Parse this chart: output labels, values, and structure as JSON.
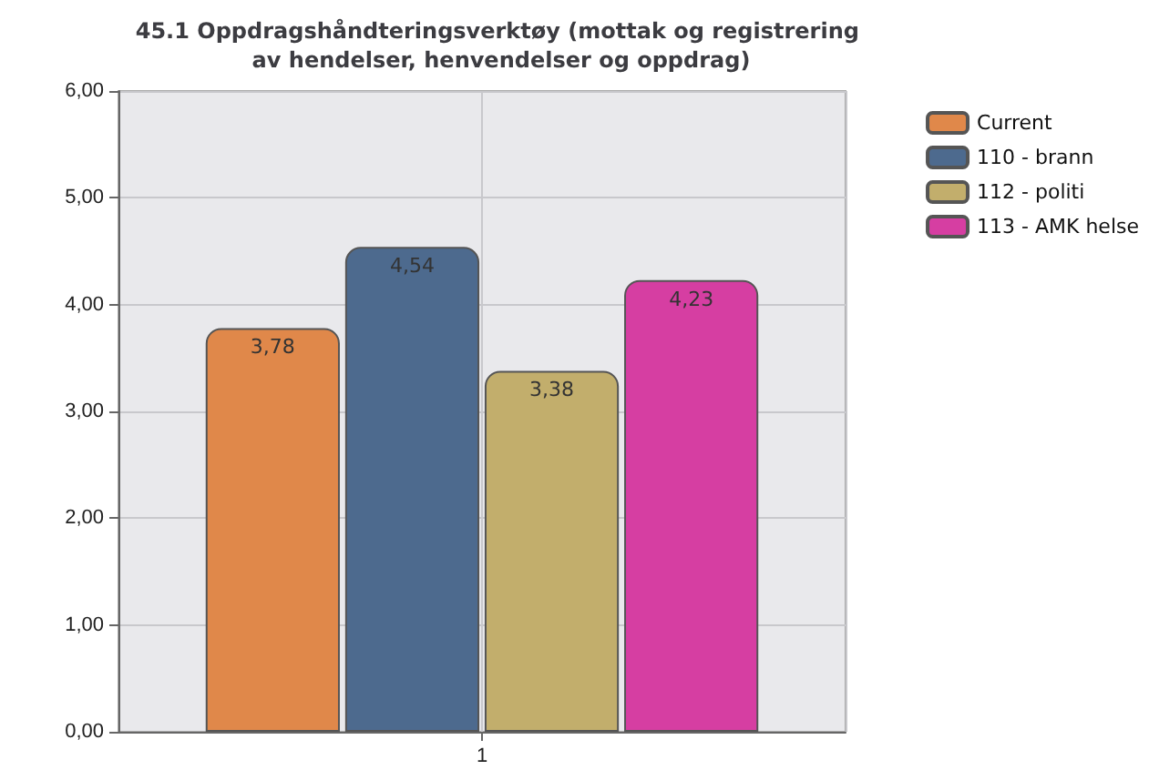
{
  "chart_data": {
    "type": "bar",
    "title": "45.1 Oppdragshåndteringsverktøy (mottak og registrering av hendelser, henvendelser og oppdrag)",
    "categories": [
      "1"
    ],
    "series": [
      {
        "name": "Current",
        "color": "#e0884a",
        "values": [
          3.78
        ],
        "value_labels": [
          "3,78"
        ]
      },
      {
        "name": "110 - brann",
        "color": "#4d6a8e",
        "values": [
          4.54
        ],
        "value_labels": [
          "4,54"
        ]
      },
      {
        "name": "112 - politi",
        "color": "#c2ae6c",
        "values": [
          3.38
        ],
        "value_labels": [
          "3,38"
        ]
      },
      {
        "name": "113 - AMK helse",
        "color": "#d63ea2",
        "values": [
          4.23
        ],
        "value_labels": [
          "4,23"
        ]
      }
    ],
    "ylim": [
      0,
      6
    ],
    "yticks": [
      {
        "value": 0,
        "label": "0,00"
      },
      {
        "value": 1,
        "label": "1,00"
      },
      {
        "value": 2,
        "label": "2,00"
      },
      {
        "value": 3,
        "label": "3,00"
      },
      {
        "value": 4,
        "label": "4,00"
      },
      {
        "value": 5,
        "label": "5,00"
      },
      {
        "value": 6,
        "label": "6,00"
      }
    ],
    "grid": true,
    "legend": "top right"
  }
}
